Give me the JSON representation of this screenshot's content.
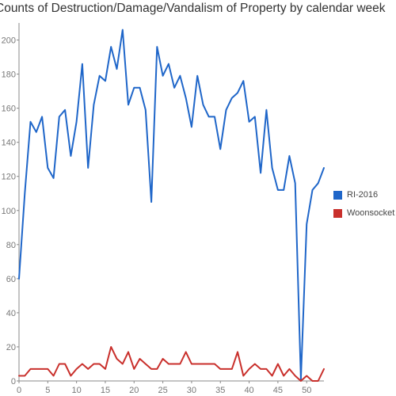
{
  "chart_data": {
    "type": "line",
    "title": "Counts of Destruction/Damage/Vandalism of Property by calendar week",
    "xlabel": "",
    "ylabel": "",
    "xlim": [
      0,
      53
    ],
    "ylim": [
      0,
      210
    ],
    "x_ticks": [
      0,
      5,
      10,
      15,
      20,
      25,
      30,
      35,
      40,
      45,
      50
    ],
    "y_ticks": [
      0,
      20,
      40,
      60,
      80,
      100,
      120,
      140,
      160,
      180,
      200
    ],
    "grid": false,
    "legend_position": "right",
    "x": [
      0,
      1,
      2,
      3,
      4,
      5,
      6,
      7,
      8,
      9,
      10,
      11,
      12,
      13,
      14,
      15,
      16,
      17,
      18,
      19,
      20,
      21,
      22,
      23,
      24,
      25,
      26,
      27,
      28,
      29,
      30,
      31,
      32,
      33,
      34,
      35,
      36,
      37,
      38,
      39,
      40,
      41,
      42,
      43,
      44,
      45,
      46,
      47,
      48,
      49,
      50,
      51,
      52,
      53
    ],
    "series": [
      {
        "name": "RI-2016",
        "color": "#1f66c9",
        "values": [
          60,
          110,
          152,
          146,
          155,
          125,
          119,
          155,
          159,
          132,
          152,
          186,
          125,
          162,
          179,
          176,
          196,
          183,
          206,
          162,
          172,
          172,
          159,
          105,
          196,
          179,
          186,
          172,
          179,
          166,
          149,
          179,
          162,
          155,
          155,
          136,
          159,
          166,
          169,
          176,
          152,
          155,
          122,
          159,
          125,
          112,
          112,
          132,
          116,
          1,
          92,
          112,
          116,
          125
        ]
      },
      {
        "name": "Woonsocket",
        "color": "#c9302c",
        "values": [
          3,
          3,
          7,
          7,
          7,
          7,
          3,
          10,
          10,
          3,
          7,
          10,
          7,
          10,
          10,
          7,
          20,
          13,
          10,
          17,
          7,
          13,
          10,
          7,
          7,
          13,
          10,
          10,
          10,
          17,
          10,
          10,
          10,
          10,
          10,
          7,
          7,
          7,
          17,
          3,
          7,
          10,
          7,
          7,
          3,
          10,
          3,
          7,
          3,
          0,
          3,
          0,
          0,
          7
        ]
      }
    ]
  }
}
